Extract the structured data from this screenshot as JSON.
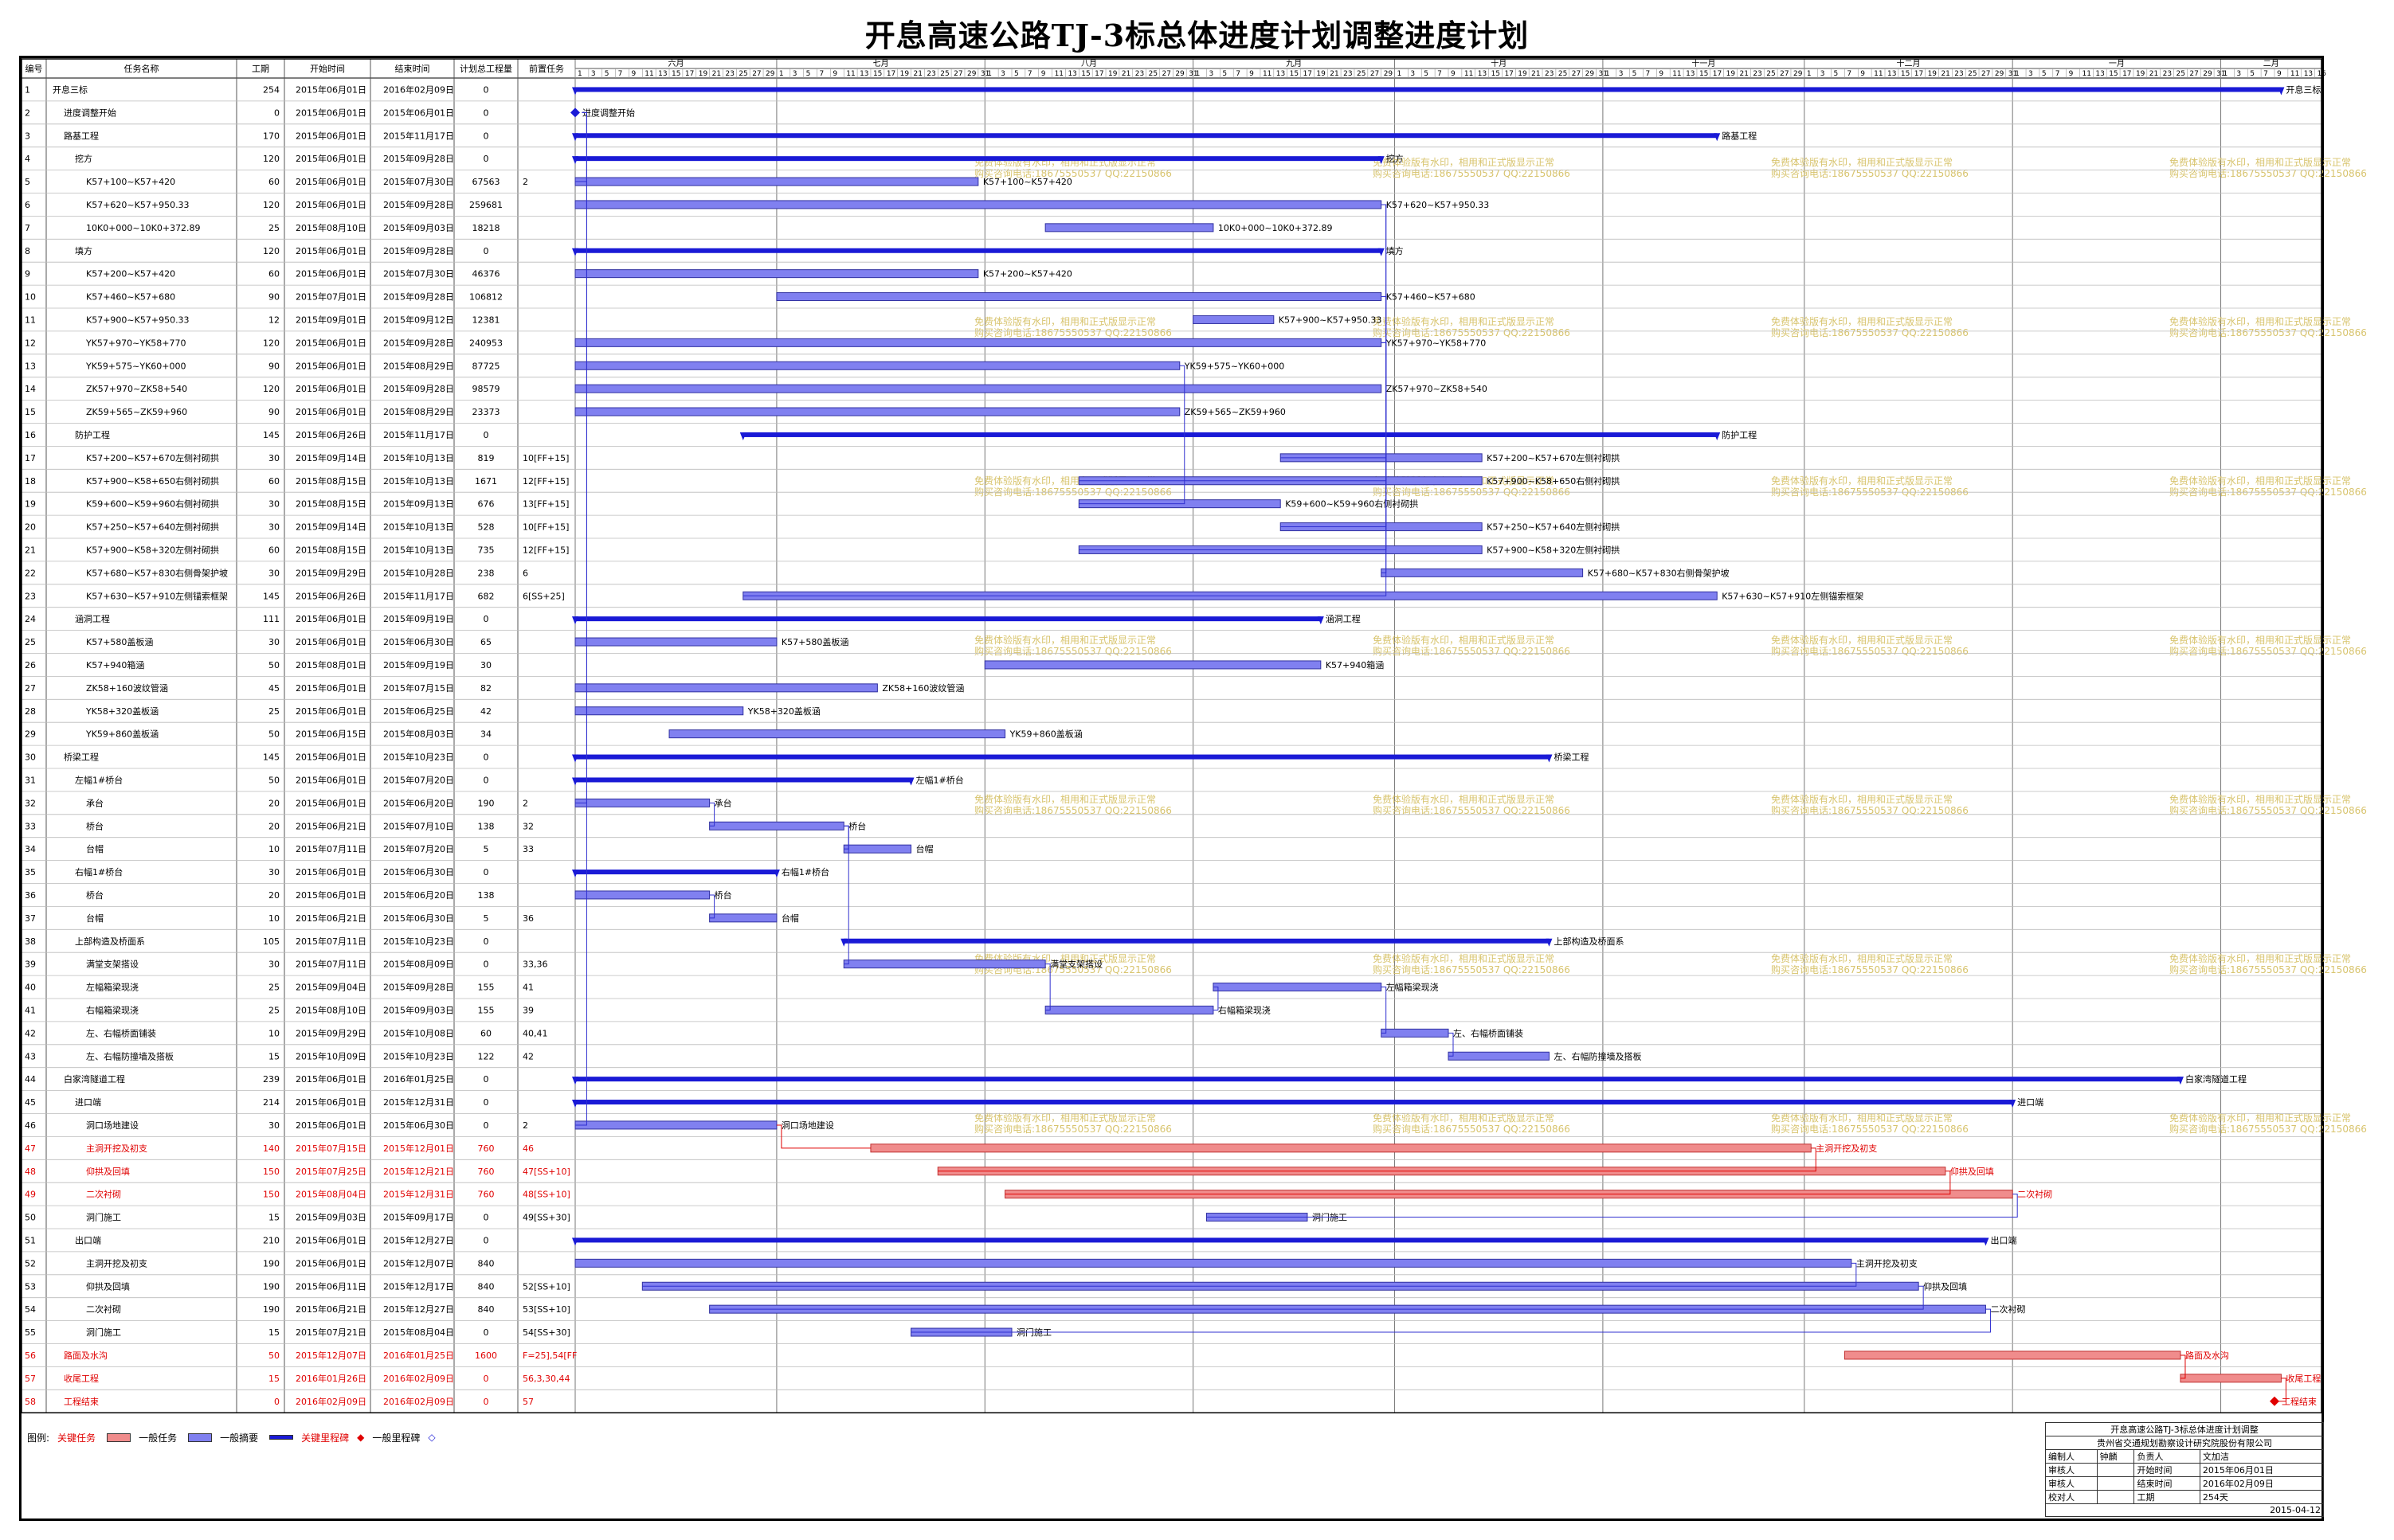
{
  "title": "开息高速公路TJ-3标总体进度计划调整进度计划",
  "columns": [
    "编号",
    "任务名称",
    "工期",
    "开始时间",
    "结束时间",
    "计划总工程量",
    "前置任务"
  ],
  "timeline": {
    "start": "2015-06-01",
    "end": "2016-02-15",
    "months": [
      {
        "label": "六月",
        "start": "2015-06-01"
      },
      {
        "label": "七月",
        "start": "2015-07-01"
      },
      {
        "label": "八月",
        "start": "2015-08-01"
      },
      {
        "label": "九月",
        "start": "2015-09-01"
      },
      {
        "label": "十月",
        "start": "2015-10-01"
      },
      {
        "label": "十一月",
        "start": "2015-11-01"
      },
      {
        "label": "十二月",
        "start": "2015-12-01"
      },
      {
        "label": "一月",
        "start": "2016-01-01"
      },
      {
        "label": "二月",
        "start": "2016-02-01"
      }
    ]
  },
  "colors": {
    "critical": "#f08c8c",
    "normal": "#8080f0",
    "summary": "#1a1ad6",
    "critical_text": "#e00000",
    "watermark": "#d8c46e",
    "link": "#3030d0"
  },
  "watermark": {
    "line1": "免费体验版有水印，相用和正式版显示正常",
    "line2": "购买咨询电话:18675550537 QQ:22150866"
  },
  "chart_data": {
    "type": "gantt",
    "title": "开息高速公路TJ-3标总体进度计划调整进度计划",
    "tasks": [
      {
        "id": "1",
        "name": "开息三标",
        "level": 0,
        "duration": "254",
        "start": "2015年06月01日",
        "end": "2016年02月09日",
        "qty": "0",
        "pred": "",
        "type": "summary",
        "label": "开息三标"
      },
      {
        "id": "2",
        "name": "进度调整开始",
        "level": 1,
        "duration": "0",
        "start": "2015年06月01日",
        "end": "2015年06月01日",
        "qty": "0",
        "pred": "",
        "type": "milestone",
        "label": "进度调整开始"
      },
      {
        "id": "3",
        "name": "路基工程",
        "level": 1,
        "duration": "170",
        "start": "2015年06月01日",
        "end": "2015年11月17日",
        "qty": "0",
        "pred": "",
        "type": "summary",
        "label": "路基工程"
      },
      {
        "id": "4",
        "name": "挖方",
        "level": 2,
        "duration": "120",
        "start": "2015年06月01日",
        "end": "2015年09月28日",
        "qty": "0",
        "pred": "",
        "type": "summary",
        "label": "挖方"
      },
      {
        "id": "5",
        "name": "K57+100~K57+420",
        "level": 3,
        "duration": "60",
        "start": "2015年06月01日",
        "end": "2015年07月30日",
        "qty": "67563",
        "pred": "2",
        "type": "normal",
        "label": "K57+100~K57+420"
      },
      {
        "id": "6",
        "name": "K57+620~K57+950.33",
        "level": 3,
        "duration": "120",
        "start": "2015年06月01日",
        "end": "2015年09月28日",
        "qty": "259681",
        "pred": "",
        "type": "normal",
        "label": "K57+620~K57+950.33"
      },
      {
        "id": "7",
        "name": "10K0+000~10K0+372.89",
        "level": 3,
        "duration": "25",
        "start": "2015年08月10日",
        "end": "2015年09月03日",
        "qty": "18218",
        "pred": "",
        "type": "normal",
        "label": "10K0+000~10K0+372.89"
      },
      {
        "id": "8",
        "name": "填方",
        "level": 2,
        "duration": "120",
        "start": "2015年06月01日",
        "end": "2015年09月28日",
        "qty": "0",
        "pred": "",
        "type": "summary",
        "label": "填方"
      },
      {
        "id": "9",
        "name": "K57+200~K57+420",
        "level": 3,
        "duration": "60",
        "start": "2015年06月01日",
        "end": "2015年07月30日",
        "qty": "46376",
        "pred": "",
        "type": "normal",
        "label": "K57+200~K57+420"
      },
      {
        "id": "10",
        "name": "K57+460~K57+680",
        "level": 3,
        "duration": "90",
        "start": "2015年07月01日",
        "end": "2015年09月28日",
        "qty": "106812",
        "pred": "",
        "type": "normal",
        "label": "K57+460~K57+680"
      },
      {
        "id": "11",
        "name": "K57+900~K57+950.33",
        "level": 3,
        "duration": "12",
        "start": "2015年09月01日",
        "end": "2015年09月12日",
        "qty": "12381",
        "pred": "",
        "type": "normal",
        "label": "K57+900~K57+950.33"
      },
      {
        "id": "12",
        "name": "YK57+970~YK58+770",
        "level": 3,
        "duration": "120",
        "start": "2015年06月01日",
        "end": "2015年09月28日",
        "qty": "240953",
        "pred": "",
        "type": "normal",
        "label": "YK57+970~YK58+770"
      },
      {
        "id": "13",
        "name": "YK59+575~YK60+000",
        "level": 3,
        "duration": "90",
        "start": "2015年06月01日",
        "end": "2015年08月29日",
        "qty": "87725",
        "pred": "",
        "type": "normal",
        "label": "YK59+575~YK60+000"
      },
      {
        "id": "14",
        "name": "ZK57+970~ZK58+540",
        "level": 3,
        "duration": "120",
        "start": "2015年06月01日",
        "end": "2015年09月28日",
        "qty": "98579",
        "pred": "",
        "type": "normal",
        "label": "ZK57+970~ZK58+540"
      },
      {
        "id": "15",
        "name": "ZK59+565~ZK59+960",
        "level": 3,
        "duration": "90",
        "start": "2015年06月01日",
        "end": "2015年08月29日",
        "qty": "23373",
        "pred": "",
        "type": "normal",
        "label": "ZK59+565~ZK59+960"
      },
      {
        "id": "16",
        "name": "防护工程",
        "level": 2,
        "duration": "145",
        "start": "2015年06月26日",
        "end": "2015年11月17日",
        "qty": "0",
        "pred": "",
        "type": "summary",
        "label": "防护工程"
      },
      {
        "id": "17",
        "name": "K57+200~K57+670左侧衬砌拱",
        "level": 3,
        "duration": "30",
        "start": "2015年09月14日",
        "end": "2015年10月13日",
        "qty": "819",
        "pred": "10[FF+15]",
        "type": "normal",
        "label": "K57+200~K57+670左侧衬砌拱"
      },
      {
        "id": "18",
        "name": "K57+900~K58+650右侧衬砌拱",
        "level": 3,
        "duration": "60",
        "start": "2015年08月15日",
        "end": "2015年10月13日",
        "qty": "1671",
        "pred": "12[FF+15]",
        "type": "normal",
        "label": "K57+900~K58+650右侧衬砌拱"
      },
      {
        "id": "19",
        "name": "K59+600~K59+960右侧衬砌拱",
        "level": 3,
        "duration": "30",
        "start": "2015年08月15日",
        "end": "2015年09月13日",
        "qty": "676",
        "pred": "13[FF+15]",
        "type": "normal",
        "label": "K59+600~K59+960右侧衬砌拱"
      },
      {
        "id": "20",
        "name": "K57+250~K57+640左侧衬砌拱",
        "level": 3,
        "duration": "30",
        "start": "2015年09月14日",
        "end": "2015年10月13日",
        "qty": "528",
        "pred": "10[FF+15]",
        "type": "normal",
        "label": "K57+250~K57+640左侧衬砌拱"
      },
      {
        "id": "21",
        "name": "K57+900~K58+320左侧衬砌拱",
        "level": 3,
        "duration": "60",
        "start": "2015年08月15日",
        "end": "2015年10月13日",
        "qty": "735",
        "pred": "12[FF+15]",
        "type": "normal",
        "label": "K57+900~K58+320左侧衬砌拱"
      },
      {
        "id": "22",
        "name": "K57+680~K57+830右侧骨架护坡",
        "level": 3,
        "duration": "30",
        "start": "2015年09月29日",
        "end": "2015年10月28日",
        "qty": "238",
        "pred": "6",
        "type": "normal",
        "label": "K57+680~K57+830右侧骨架护坡"
      },
      {
        "id": "23",
        "name": "K57+630~K57+910左侧锚索框架",
        "level": 3,
        "duration": "145",
        "start": "2015年06月26日",
        "end": "2015年11月17日",
        "qty": "682",
        "pred": "6[SS+25]",
        "type": "normal",
        "label": "K57+630~K57+910左侧锚索框架"
      },
      {
        "id": "24",
        "name": "涵洞工程",
        "level": 2,
        "duration": "111",
        "start": "2015年06月01日",
        "end": "2015年09月19日",
        "qty": "0",
        "pred": "",
        "type": "summary",
        "label": "涵洞工程"
      },
      {
        "id": "25",
        "name": "K57+580盖板涵",
        "level": 3,
        "duration": "30",
        "start": "2015年06月01日",
        "end": "2015年06月30日",
        "qty": "65",
        "pred": "",
        "type": "normal",
        "label": "K57+580盖板涵"
      },
      {
        "id": "26",
        "name": "K57+940箱涵",
        "level": 3,
        "duration": "50",
        "start": "2015年08月01日",
        "end": "2015年09月19日",
        "qty": "30",
        "pred": "",
        "type": "normal",
        "label": "K57+940箱涵"
      },
      {
        "id": "27",
        "name": "ZK58+160波纹管涵",
        "level": 3,
        "duration": "45",
        "start": "2015年06月01日",
        "end": "2015年07月15日",
        "qty": "82",
        "pred": "",
        "type": "normal",
        "label": "ZK58+160波纹管涵"
      },
      {
        "id": "28",
        "name": "YK58+320盖板涵",
        "level": 3,
        "duration": "25",
        "start": "2015年06月01日",
        "end": "2015年06月25日",
        "qty": "42",
        "pred": "",
        "type": "normal",
        "label": "YK58+320盖板涵"
      },
      {
        "id": "29",
        "name": "YK59+860盖板涵",
        "level": 3,
        "duration": "50",
        "start": "2015年06月15日",
        "end": "2015年08月03日",
        "qty": "34",
        "pred": "",
        "type": "normal",
        "label": "YK59+860盖板涵"
      },
      {
        "id": "30",
        "name": "桥梁工程",
        "level": 1,
        "duration": "145",
        "start": "2015年06月01日",
        "end": "2015年10月23日",
        "qty": "0",
        "pred": "",
        "type": "summary",
        "label": "桥梁工程"
      },
      {
        "id": "31",
        "name": "左幅1#桥台",
        "level": 2,
        "duration": "50",
        "start": "2015年06月01日",
        "end": "2015年07月20日",
        "qty": "0",
        "pred": "",
        "type": "summary",
        "label": "左幅1#桥台"
      },
      {
        "id": "32",
        "name": "承台",
        "level": 3,
        "duration": "20",
        "start": "2015年06月01日",
        "end": "2015年06月20日",
        "qty": "190",
        "pred": "2",
        "type": "normal",
        "label": "承台"
      },
      {
        "id": "33",
        "name": "桥台",
        "level": 3,
        "duration": "20",
        "start": "2015年06月21日",
        "end": "2015年07月10日",
        "qty": "138",
        "pred": "32",
        "type": "normal",
        "label": "桥台"
      },
      {
        "id": "34",
        "name": "台帽",
        "level": 3,
        "duration": "10",
        "start": "2015年07月11日",
        "end": "2015年07月20日",
        "qty": "5",
        "pred": "33",
        "type": "normal",
        "label": "台帽"
      },
      {
        "id": "35",
        "name": "右幅1#桥台",
        "level": 2,
        "duration": "30",
        "start": "2015年06月01日",
        "end": "2015年06月30日",
        "qty": "0",
        "pred": "",
        "type": "summary",
        "label": "右幅1#桥台"
      },
      {
        "id": "36",
        "name": "桥台",
        "level": 3,
        "duration": "20",
        "start": "2015年06月01日",
        "end": "2015年06月20日",
        "qty": "138",
        "pred": "",
        "type": "normal",
        "label": "桥台"
      },
      {
        "id": "37",
        "name": "台帽",
        "level": 3,
        "duration": "10",
        "start": "2015年06月21日",
        "end": "2015年06月30日",
        "qty": "5",
        "pred": "36",
        "type": "normal",
        "label": "台帽"
      },
      {
        "id": "38",
        "name": "上部构造及桥面系",
        "level": 2,
        "duration": "105",
        "start": "2015年07月11日",
        "end": "2015年10月23日",
        "qty": "0",
        "pred": "",
        "type": "summary",
        "label": "上部构造及桥面系"
      },
      {
        "id": "39",
        "name": "满堂支架搭设",
        "level": 3,
        "duration": "30",
        "start": "2015年07月11日",
        "end": "2015年08月09日",
        "qty": "0",
        "pred": "33,36",
        "type": "normal",
        "label": "满堂支架搭设"
      },
      {
        "id": "40",
        "name": "左幅箱梁现浇",
        "level": 3,
        "duration": "25",
        "start": "2015年09月04日",
        "end": "2015年09月28日",
        "qty": "155",
        "pred": "41",
        "type": "normal",
        "label": "左幅箱梁现浇"
      },
      {
        "id": "41",
        "name": "右幅箱梁现浇",
        "level": 3,
        "duration": "25",
        "start": "2015年08月10日",
        "end": "2015年09月03日",
        "qty": "155",
        "pred": "39",
        "type": "normal",
        "label": "右幅箱梁现浇"
      },
      {
        "id": "42",
        "name": "左、右幅桥面铺装",
        "level": 3,
        "duration": "10",
        "start": "2015年09月29日",
        "end": "2015年10月08日",
        "qty": "60",
        "pred": "40,41",
        "type": "normal",
        "label": "左、右幅桥面铺装"
      },
      {
        "id": "43",
        "name": "左、右幅防撞墙及搭板",
        "level": 3,
        "duration": "15",
        "start": "2015年10月09日",
        "end": "2015年10月23日",
        "qty": "122",
        "pred": "42",
        "type": "normal",
        "label": "左、右幅防撞墙及搭板"
      },
      {
        "id": "44",
        "name": "白家湾隧道工程",
        "level": 1,
        "duration": "239",
        "start": "2015年06月01日",
        "end": "2016年01月25日",
        "qty": "0",
        "pred": "",
        "type": "summary",
        "label": "白家湾隧道工程"
      },
      {
        "id": "45",
        "name": "进口端",
        "level": 2,
        "duration": "214",
        "start": "2015年06月01日",
        "end": "2015年12月31日",
        "qty": "0",
        "pred": "",
        "type": "summary",
        "label": "进口端"
      },
      {
        "id": "46",
        "name": "洞口场地建设",
        "level": 3,
        "duration": "30",
        "start": "2015年06月01日",
        "end": "2015年06月30日",
        "qty": "0",
        "pred": "2",
        "type": "normal",
        "label": "洞口场地建设"
      },
      {
        "id": "47",
        "name": "主洞开挖及初支",
        "level": 3,
        "duration": "140",
        "start": "2015年07月15日",
        "end": "2015年12月01日",
        "qty": "760",
        "pred": "46",
        "type": "critical",
        "label": "主洞开挖及初支"
      },
      {
        "id": "48",
        "name": "仰拱及回填",
        "level": 3,
        "duration": "150",
        "start": "2015年07月25日",
        "end": "2015年12月21日",
        "qty": "760",
        "pred": "47[SS+10]",
        "type": "critical",
        "label": "仰拱及回填"
      },
      {
        "id": "49",
        "name": "二次衬砌",
        "level": 3,
        "duration": "150",
        "start": "2015年08月04日",
        "end": "2015年12月31日",
        "qty": "760",
        "pred": "48[SS+10]",
        "type": "critical",
        "label": "二次衬砌"
      },
      {
        "id": "50",
        "name": "洞门施工",
        "level": 3,
        "duration": "15",
        "start": "2015年09月03日",
        "end": "2015年09月17日",
        "qty": "0",
        "pred": "49[SS+30]",
        "type": "normal",
        "label": "洞门施工"
      },
      {
        "id": "51",
        "name": "出口端",
        "level": 2,
        "duration": "210",
        "start": "2015年06月01日",
        "end": "2015年12月27日",
        "qty": "0",
        "pred": "",
        "type": "summary",
        "label": "出口端"
      },
      {
        "id": "52",
        "name": "主洞开挖及初支",
        "level": 3,
        "duration": "190",
        "start": "2015年06月01日",
        "end": "2015年12月07日",
        "qty": "840",
        "pred": "",
        "type": "normal",
        "label": "主洞开挖及初支"
      },
      {
        "id": "53",
        "name": "仰拱及回填",
        "level": 3,
        "duration": "190",
        "start": "2015年06月11日",
        "end": "2015年12月17日",
        "qty": "840",
        "pred": "52[SS+10]",
        "type": "normal",
        "label": "仰拱及回填"
      },
      {
        "id": "54",
        "name": "二次衬砌",
        "level": 3,
        "duration": "190",
        "start": "2015年06月21日",
        "end": "2015年12月27日",
        "qty": "840",
        "pred": "53[SS+10]",
        "type": "normal",
        "label": "二次衬砌"
      },
      {
        "id": "55",
        "name": "洞门施工",
        "level": 3,
        "duration": "15",
        "start": "2015年07月21日",
        "end": "2015年08月04日",
        "qty": "0",
        "pred": "54[SS+30]",
        "type": "normal",
        "label": "洞门施工"
      },
      {
        "id": "56",
        "name": "路面及水沟",
        "level": 1,
        "duration": "50",
        "start": "2015年12月07日",
        "end": "2016年01月25日",
        "qty": "1600",
        "pred": "F=25],54[FF",
        "type": "critical",
        "label": "路面及水沟"
      },
      {
        "id": "57",
        "name": "收尾工程",
        "level": 1,
        "duration": "15",
        "start": "2016年01月26日",
        "end": "2016年02月09日",
        "qty": "0",
        "pred": "56,3,30,44",
        "type": "critical",
        "label": "收尾工程"
      },
      {
        "id": "58",
        "name": "工程结束",
        "level": 1,
        "duration": "0",
        "start": "2016年02月09日",
        "end": "2016年02月09日",
        "qty": "0",
        "pred": "57",
        "type": "critical_milestone",
        "label": "工程结束"
      }
    ]
  },
  "legend": {
    "title": "图例:",
    "critical_task": "关键任务",
    "normal_task": "一般任务",
    "normal_summary": "一般摘要",
    "critical_milestone": "关键里程碑",
    "normal_milestone": "一般里程碑"
  },
  "info_block": {
    "title": "开息高速公路TJ-3标总体进度计划调整",
    "org": "贵州省交通规划勘察设计研究院股份有限公司",
    "rows": [
      [
        "编制人",
        "钟麟",
        "负责人",
        "文加洁"
      ],
      [
        "审核人",
        "",
        "开始时间",
        "2015年06月01日"
      ],
      [
        "审核人",
        "",
        "结束时间",
        "2016年02月09日"
      ],
      [
        "校对人",
        "",
        "工期",
        "254天"
      ]
    ],
    "date": "2015-04-12"
  }
}
